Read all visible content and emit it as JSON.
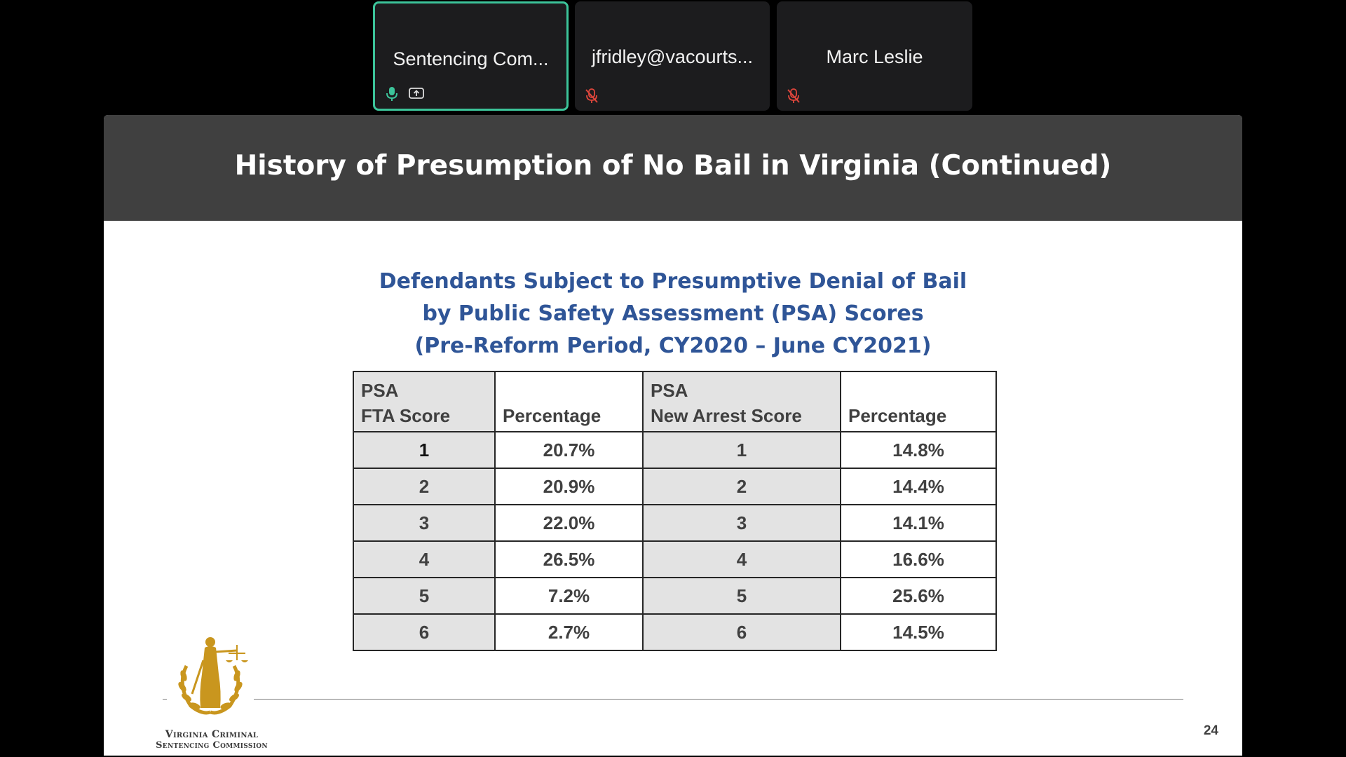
{
  "participants": [
    {
      "name": "Sentencing Com...",
      "active": true,
      "icons": [
        "mic-on-icon",
        "share-screen-icon"
      ]
    },
    {
      "name": "jfridley@vacourts...",
      "active": false,
      "icons": [
        "mic-muted-icon"
      ]
    },
    {
      "name": "Marc Leslie",
      "active": false,
      "icons": [
        "mic-muted-icon"
      ]
    }
  ],
  "slide": {
    "title": "History of Presumption of No Bail in Virginia (Continued)",
    "subtitle_lines": [
      "Defendants Subject to Presumptive Denial of Bail",
      "by Public Safety Assessment (PSA) Scores",
      "(Pre-Reform Period, CY2020 – June CY2021)"
    ],
    "table": {
      "headers": [
        {
          "line1": "PSA",
          "line2": "FTA Score"
        },
        {
          "line1": "",
          "line2": "Percentage"
        },
        {
          "line1": "PSA",
          "line2": "New Arrest Score"
        },
        {
          "line1": "",
          "line2": "Percentage"
        }
      ],
      "rows": [
        [
          "1",
          "20.7%",
          "1",
          "14.8%"
        ],
        [
          "2",
          "20.9%",
          "2",
          "14.4%"
        ],
        [
          "3",
          "22.0%",
          "3",
          "14.1%"
        ],
        [
          "4",
          "26.5%",
          "4",
          "16.6%"
        ],
        [
          "5",
          "7.2%",
          "5",
          "25.6%"
        ],
        [
          "6",
          "2.7%",
          "6",
          "14.5%"
        ]
      ]
    },
    "logo_text_line1": "Virginia Criminal",
    "logo_text_line2": "Sentencing Commission",
    "page_number": "24"
  },
  "colors": {
    "active_border": "#3cc49a",
    "header_bg": "#404040",
    "subtitle": "#2f5597",
    "muted": "#e0463c",
    "gold": "#c9961e"
  }
}
